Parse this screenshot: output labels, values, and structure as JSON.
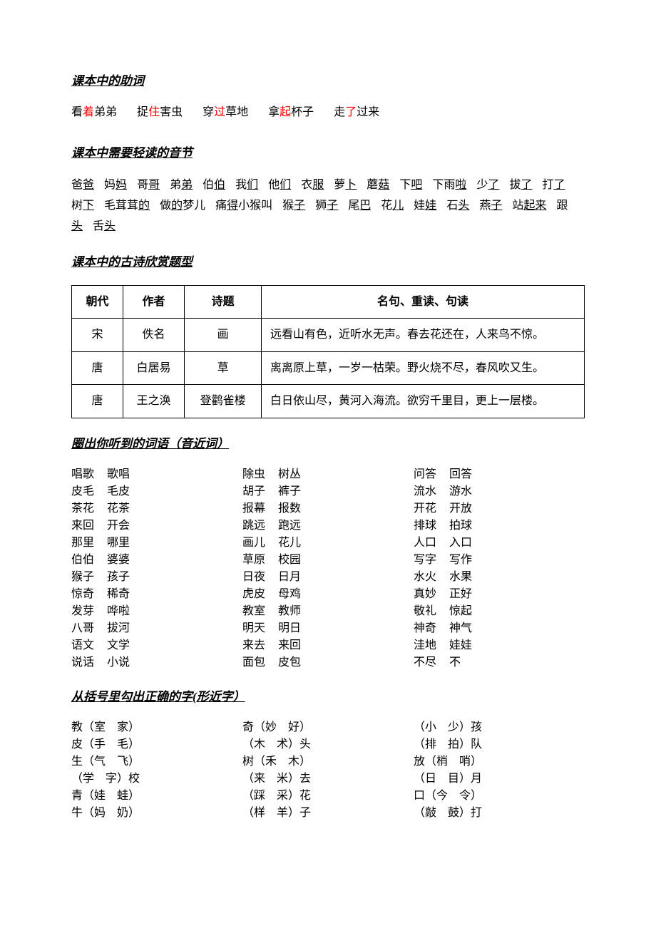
{
  "sections": {
    "auxiliary": {
      "title": "课本中的助词",
      "items": [
        {
          "pre": "看",
          "red": "着",
          "post": "弟弟"
        },
        {
          "pre": "捉",
          "red": "住",
          "post": "害虫"
        },
        {
          "pre": "穿",
          "red": "过",
          "post": "草地"
        },
        {
          "pre": "拿",
          "red": "起",
          "post": "杯子"
        },
        {
          "pre": "走",
          "red": "了",
          "post": "过来"
        }
      ]
    },
    "lightReading": {
      "title": "课本中需要轻读的音节",
      "items": [
        {
          "pre": "爸",
          "u": "爸"
        },
        {
          "pre": "妈",
          "u": "妈"
        },
        {
          "pre": "哥",
          "u": "哥"
        },
        {
          "pre": "弟",
          "u": "弟"
        },
        {
          "pre": "伯",
          "u": "伯"
        },
        {
          "pre": "我",
          "u": "们"
        },
        {
          "pre": "他",
          "u": "们"
        },
        {
          "pre": "衣",
          "u": "服"
        },
        {
          "pre": "萝",
          "u": "卜"
        },
        {
          "pre": "蘑",
          "u": "菇"
        },
        {
          "pre": "下",
          "u": "吧"
        },
        {
          "pre": "下雨",
          "u": "啦"
        },
        {
          "pre": "少",
          "u": "了"
        },
        {
          "pre": "拔",
          "u": "了"
        },
        {
          "pre": "打",
          "u": "了"
        },
        {
          "pre": "树",
          "u": "下"
        },
        {
          "pre": "毛茸茸",
          "u": "的"
        },
        {
          "pre": "做",
          "u": "的",
          "post": "梦儿"
        },
        {
          "pre": "痛",
          "u": "得",
          "post": "小猴叫"
        },
        {
          "pre": "猴",
          "u": "子"
        },
        {
          "pre": "狮",
          "u": "子"
        },
        {
          "pre": "尾",
          "u": "巴"
        },
        {
          "pre": "花",
          "u": "儿"
        },
        {
          "pre": "娃",
          "u": "娃"
        },
        {
          "pre": "石",
          "u": "头"
        },
        {
          "pre": "燕",
          "u": "子"
        },
        {
          "pre": "站",
          "u": "起来"
        },
        {
          "pre": "跟",
          "u": "头"
        },
        {
          "pre": "舌",
          "u": "头"
        }
      ]
    },
    "poetry": {
      "title": "课本中的古诗欣赏题型",
      "headers": [
        "朝代",
        "作者",
        "诗题",
        "名句、重读、句读"
      ],
      "rows": [
        [
          "宋",
          "佚名",
          "画",
          "远看山有色，近听水无声。春去花还在，人来鸟不惊。"
        ],
        [
          "唐",
          "白居易",
          "草",
          "离离原上草，一岁一枯荣。野火烧不尽，春风吹又生。"
        ],
        [
          "唐",
          "王之涣",
          "登鹳雀楼",
          "白日依山尽，黄河入海流。欲穷千里目，更上一层楼。"
        ]
      ]
    },
    "soundWords": {
      "title": "圈出你听到的词语（音近词）",
      "columns": [
        [
          [
            "唱歌",
            "歌唱"
          ],
          [
            "皮毛",
            "毛皮"
          ],
          [
            "茶花",
            "花茶"
          ],
          [
            "来回",
            "开会"
          ],
          [
            "那里",
            "哪里"
          ],
          [
            "伯伯",
            "婆婆"
          ],
          [
            "猴子",
            "孩子"
          ],
          [
            "惊奇",
            "稀奇"
          ],
          [
            "发芽",
            "哗啦"
          ],
          [
            "八哥",
            "拔河"
          ],
          [
            "语文",
            "文学"
          ],
          [
            "说话",
            "小说"
          ]
        ],
        [
          [
            "除虫",
            "树丛"
          ],
          [
            "胡子",
            "裤子"
          ],
          [
            "报幕",
            "报数"
          ],
          [
            "跳远",
            "跑远"
          ],
          [
            "画儿",
            "花儿"
          ],
          [
            "草原",
            "校园"
          ],
          [
            "日夜",
            "日月"
          ],
          [
            "虎皮",
            "母鸡"
          ],
          [
            "教室",
            "教师"
          ],
          [
            "明天",
            "明日"
          ],
          [
            "来去",
            "来回"
          ],
          [
            "面包",
            "皮包"
          ]
        ],
        [
          [
            "问答",
            "回答"
          ],
          [
            "流水",
            "游水"
          ],
          [
            "开花",
            "开放"
          ],
          [
            "排球",
            "拍球"
          ],
          [
            "人口",
            "入口"
          ],
          [
            "写字",
            "写作"
          ],
          [
            "水火",
            "水果"
          ],
          [
            "真妙",
            "正好"
          ],
          [
            "敬礼",
            "惊起"
          ],
          [
            "神奇",
            "神气"
          ],
          [
            "洼地",
            "娃娃"
          ],
          [
            "不尽",
            "不"
          ]
        ]
      ]
    },
    "shapeWords": {
      "title": "从括号里勾出正确的字(形近字）",
      "columns": [
        [
          "教（室　家）",
          "皮（手　毛）",
          "生（气　飞）",
          "（学　字）校",
          "青（娃　蛙）",
          "牛（妈　奶）"
        ],
        [
          "奇（妙　好）",
          "（木　术）头",
          "树（禾　木）",
          "（来　米）去",
          "（踩　采）花",
          "（样　羊）子"
        ],
        [
          "（小　少）孩",
          "（排　拍）队",
          "放（梢　哨）",
          "（日　目）月",
          "口（今　令）",
          "（敲　鼓）打"
        ]
      ]
    }
  },
  "styling": {
    "background": "#ffffff",
    "textColor": "#000000",
    "redColor": "#ff0000",
    "fontSize": 16,
    "titleFontSize": 17
  }
}
